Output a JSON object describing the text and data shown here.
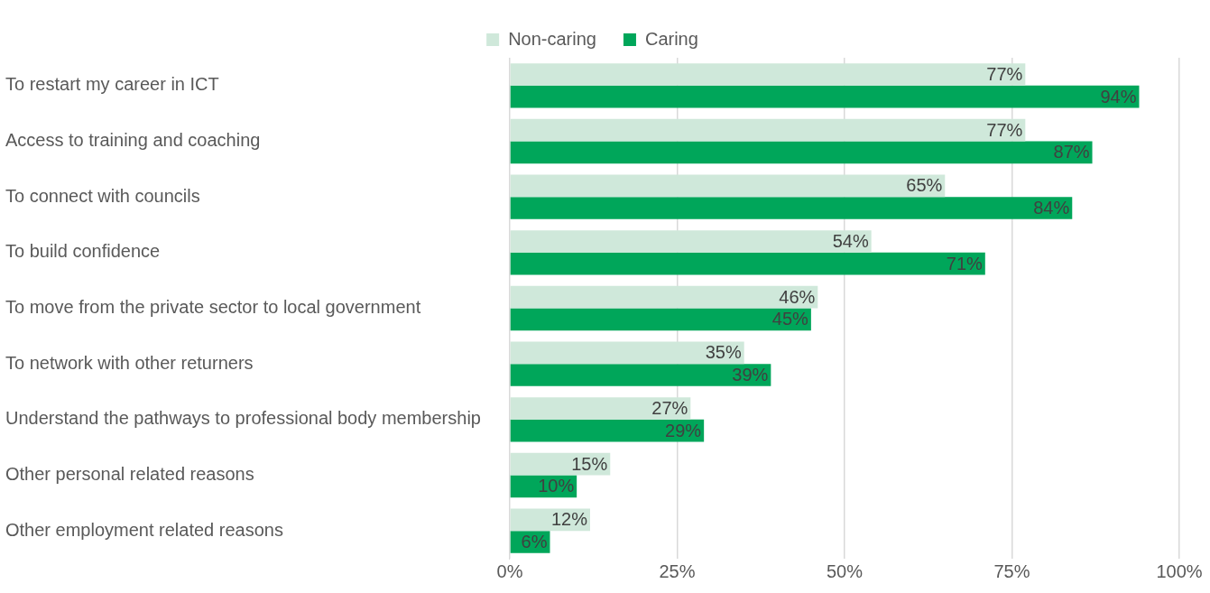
{
  "chart_data": {
    "type": "bar",
    "orientation": "horizontal",
    "categories": [
      "To restart my career in ICT",
      "Access to training and coaching",
      "To connect with councils",
      "To build confidence",
      "To move from the private sector to local government",
      "To network with other returners",
      "Understand the pathways to professional body membership",
      "Other personal related reasons",
      "Other employment related reasons"
    ],
    "series": [
      {
        "name": "Non-caring",
        "color": "#cfe8da",
        "values": [
          77,
          77,
          65,
          54,
          46,
          35,
          27,
          15,
          12
        ],
        "value_labels": [
          "77%",
          "77%",
          "65%",
          "54%",
          "46%",
          "35%",
          "27%",
          "15%",
          "12%"
        ]
      },
      {
        "name": "Caring",
        "color": "#00a65a",
        "values": [
          94,
          87,
          84,
          71,
          45,
          39,
          29,
          10,
          6
        ],
        "value_labels": [
          "94%",
          "87%",
          "84%",
          "71%",
          "45%",
          "39%",
          "29%",
          "10%",
          "6%"
        ]
      }
    ],
    "xlim": [
      0,
      100
    ],
    "xticks": [
      {
        "value": 0,
        "label": "0%"
      },
      {
        "value": 25,
        "label": "25%"
      },
      {
        "value": 50,
        "label": "50%"
      },
      {
        "value": 75,
        "label": "75%"
      },
      {
        "value": 100,
        "label": "100%"
      }
    ],
    "grid": "x",
    "legend": "top"
  }
}
